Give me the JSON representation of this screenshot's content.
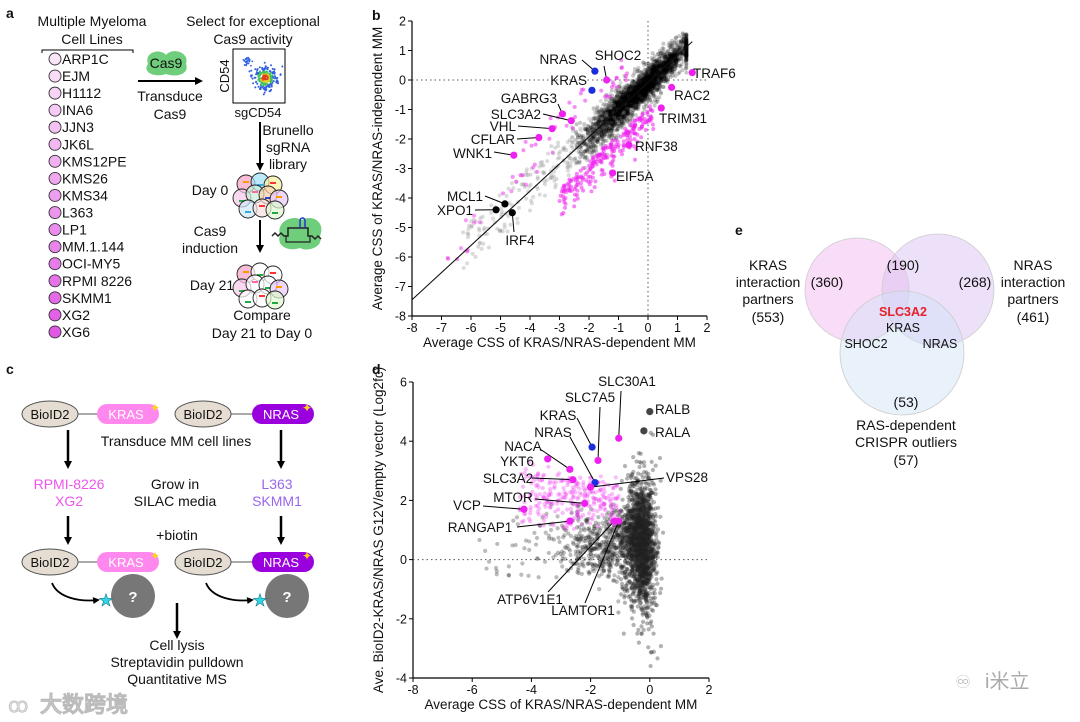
{
  "panel_labels": {
    "a": "a",
    "b": "b",
    "c": "c",
    "d": "d",
    "e": "e"
  },
  "panel_a": {
    "title_line1": "Multiple Myeloma",
    "title_line2": "Cell Lines",
    "cell_lines": [
      "ARP1C",
      "EJM",
      "H1112",
      "INA6",
      "JJN3",
      "JK6L",
      "KMS12PE",
      "KMS26",
      "KMS34",
      "L363",
      "LP1",
      "MM.1.144",
      "OCI-MY5",
      "RPMI 8226",
      "SKMM1",
      "XG2",
      "XG6"
    ],
    "select_line1": "Select for exceptional",
    "select_line2": "Cas9 activity",
    "cas9_blob": "Cas9",
    "transduce_line1": "Transduce",
    "transduce_line2": "Cas9",
    "flow_ylabel": "CD54",
    "flow_xlabel": "sgCD54",
    "library_line1": "Brunello",
    "library_line2": "sgRNA",
    "library_line3": "library",
    "day0": "Day 0",
    "induction_line1": "Cas9",
    "induction_line2": "induction",
    "day21": "Day 21",
    "compare_line1": "Compare",
    "compare_line2": "Day 21 to Day 0"
  },
  "panel_c": {
    "bioid": "BioID2",
    "kras": "KRAS",
    "nras": "NRAS",
    "transduce": "Transduce MM cell lines",
    "kras_lines": [
      "RPMI-8226",
      "XG2"
    ],
    "grow_line1": "Grow in",
    "grow_line2": "SILAC media",
    "nras_lines": [
      "L363",
      "SKMM1"
    ],
    "biotin": "+biotin",
    "unknown": "?",
    "final_steps": [
      "Cell lysis",
      "Streptavidin pulldown",
      "Quantitative MS"
    ],
    "colors": {
      "kras": "#ff88ee",
      "nras": "#9a00dd",
      "kras_text": "#ee55ee",
      "nras_text": "#9966ee"
    }
  },
  "panel_e": {
    "kras_set": [
      "KRAS",
      "interaction",
      "partners",
      "(553)"
    ],
    "nras_set": [
      "NRAS",
      "interaction",
      "partners",
      "(461)"
    ],
    "crispr_set": [
      "RAS-dependent",
      "CRISPR outliers",
      "(57)"
    ],
    "kras_only": "(360)",
    "kras_nras": "(190)",
    "nras_only": "(268)",
    "crispr_only": "(53)",
    "center_highlight": "SLC3A2",
    "center_other": "KRAS",
    "kras_crispr": "SHOC2",
    "nras_crispr": "NRAS",
    "highlight_color": "#e8202a"
  },
  "chart_data": [
    {
      "id": "b",
      "type": "scatter",
      "title": "",
      "xlabel": "Average CSS of KRAS/NRAS-dependent MM",
      "ylabel": "Average CSS of KRAS/NRAS-independent MM",
      "xlim": [
        -8,
        2
      ],
      "ylim": [
        -8,
        2
      ],
      "xticks": [
        "-8",
        "-7",
        "-6",
        "-5",
        "-4",
        "-3",
        "-2",
        "-1",
        "0",
        "1",
        "2"
      ],
      "yticks": [
        "2",
        "1",
        "0",
        "-1",
        "-2",
        "-3",
        "-4",
        "-5",
        "-6",
        "-7",
        "-8"
      ],
      "reference_lines": [
        "x=0 dotted",
        "y=0 dotted",
        "diagonal regression line"
      ],
      "colors": {
        "hit": "#ee22ee",
        "ras": "#1a2ee0",
        "essential": "#000000",
        "background": "#555555"
      },
      "labeled_points": [
        {
          "label": "NRAS",
          "x": -1.8,
          "y": 0.3,
          "group": "ras"
        },
        {
          "label": "SHOC2",
          "x": -1.4,
          "y": 0.0,
          "group": "hit"
        },
        {
          "label": "KRAS",
          "x": -1.9,
          "y": -0.35,
          "group": "ras"
        },
        {
          "label": "TRAF6",
          "x": 1.5,
          "y": 0.25,
          "group": "hit"
        },
        {
          "label": "RAC2",
          "x": 0.8,
          "y": -0.25,
          "group": "hit"
        },
        {
          "label": "TRIM31",
          "x": 0.45,
          "y": -0.95,
          "group": "hit"
        },
        {
          "label": "RNF38",
          "x": -0.65,
          "y": -2.2,
          "group": "hit"
        },
        {
          "label": "EIF5A",
          "x": -1.2,
          "y": -3.15,
          "group": "hit"
        },
        {
          "label": "GABRG3",
          "x": -2.9,
          "y": -1.15,
          "group": "hit"
        },
        {
          "label": "SLC3A2",
          "x": -2.6,
          "y": -1.38,
          "group": "hit"
        },
        {
          "label": "VHL",
          "x": -3.25,
          "y": -1.65,
          "group": "hit"
        },
        {
          "label": "CFLAR",
          "x": -3.7,
          "y": -1.95,
          "group": "hit"
        },
        {
          "label": "WNK1",
          "x": -4.55,
          "y": -2.55,
          "group": "hit"
        },
        {
          "label": "MCL1",
          "x": -4.85,
          "y": -4.2,
          "group": "essential"
        },
        {
          "label": "XPO1",
          "x": -5.15,
          "y": -4.4,
          "group": "essential"
        },
        {
          "label": "IRF4",
          "x": -4.6,
          "y": -4.5,
          "group": "essential"
        }
      ]
    },
    {
      "id": "d",
      "type": "scatter",
      "title": "",
      "xlabel": "Average CSS of KRAS/NRAS-dependent MM",
      "ylabel": "Ave. BioID2-KRAS/NRAS G12V/empty vector (Log2fc)",
      "xlim": [
        -8,
        2
      ],
      "ylim": [
        -4,
        6
      ],
      "xticks": [
        "-8",
        "-6",
        "-4",
        "-2",
        "0",
        "2"
      ],
      "yticks": [
        "6",
        "4",
        "2",
        "0",
        "-2",
        "-4"
      ],
      "reference_lines": [
        "y=0 dotted"
      ],
      "colors": {
        "hit": "#ee22ee",
        "ras": "#1a2ee0",
        "ral": "#444444",
        "background": "#333333"
      },
      "labeled_points": [
        {
          "label": "SLC30A1",
          "x": -1.05,
          "y": 4.1,
          "group": "hit"
        },
        {
          "label": "SLC7A5",
          "x": -1.75,
          "y": 3.35,
          "group": "hit"
        },
        {
          "label": "KRAS",
          "x": -1.95,
          "y": 3.8,
          "group": "ras"
        },
        {
          "label": "NRAS",
          "x": -1.85,
          "y": 2.6,
          "group": "ras"
        },
        {
          "label": "NACA",
          "x": -2.7,
          "y": 3.05,
          "group": "hit"
        },
        {
          "label": "YKT6",
          "x": -3.45,
          "y": 3.4,
          "group": "hit"
        },
        {
          "label": "SLC3A2",
          "x": -2.6,
          "y": 2.7,
          "group": "hit"
        },
        {
          "label": "VPS28",
          "x": -2.0,
          "y": 2.45,
          "group": "hit"
        },
        {
          "label": "MTOR",
          "x": -2.2,
          "y": 1.9,
          "group": "hit"
        },
        {
          "label": "VCP",
          "x": -4.25,
          "y": 1.7,
          "group": "hit"
        },
        {
          "label": "RANGAP1",
          "x": -2.7,
          "y": 1.3,
          "group": "hit"
        },
        {
          "label": "ATP6V1E1",
          "x": -1.2,
          "y": 1.3,
          "group": "hit"
        },
        {
          "label": "LAMTOR1",
          "x": -1.05,
          "y": 1.3,
          "group": "hit"
        },
        {
          "label": "RALB",
          "x": 0.0,
          "y": 5.0,
          "group": "ral"
        },
        {
          "label": "RALA",
          "x": -0.2,
          "y": 4.35,
          "group": "ral"
        }
      ]
    }
  ],
  "watermarks": {
    "left": "大数跨境",
    "right": "i米立"
  }
}
